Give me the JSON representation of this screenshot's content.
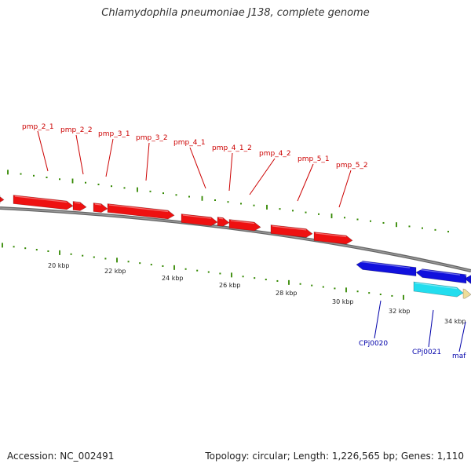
{
  "title": "Chlamydophila pneumoniae J138, complete genome",
  "footer": {
    "accession": "Accession: NC_002491",
    "summary": "Topology: circular; Length: 1,226,565 bp; Genes: 1,110"
  },
  "colors": {
    "forward_gene": "#ee1111",
    "reverse_gene": "#1111dd",
    "cyan_gene": "#22ddee",
    "tan_gene": "#eedd99",
    "tick": "#338800",
    "backbone": "#777777",
    "label_forward": "#cc0000",
    "label_reverse": "#0000aa"
  },
  "tick_labels": [
    "20 kbp",
    "22 kbp",
    "24 kbp",
    "26 kbp",
    "28 kbp",
    "30 kbp",
    "32 kbp",
    "34 kbp"
  ],
  "forward_labels": [
    "pmp_2_1",
    "pmp_2_2",
    "pmp_3_1",
    "pmp_3_2",
    "pmp_4_1",
    "pmp_4_1_2",
    "pmp_4_2",
    "pmp_5_1",
    "pmp_5_2"
  ],
  "reverse_labels": [
    "CPj0020",
    "CPj0021",
    "maf"
  ]
}
